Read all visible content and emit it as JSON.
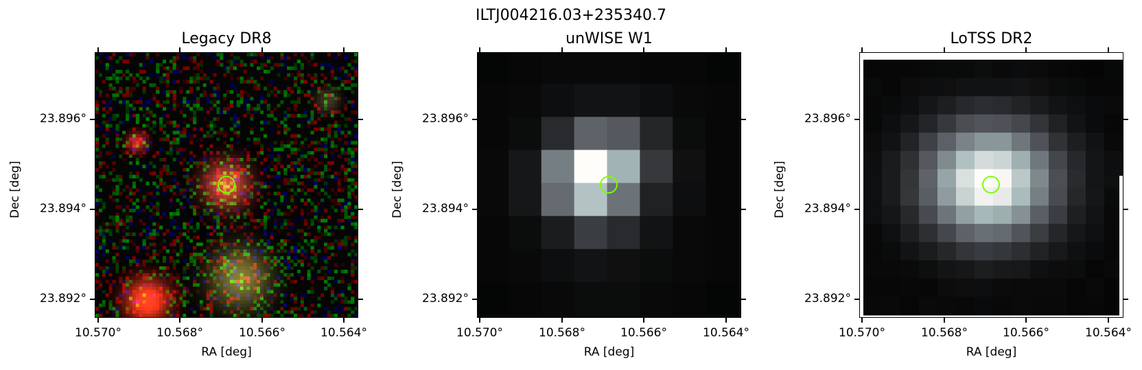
{
  "figure": {
    "title": "ILTJ004216.03+235340.7"
  },
  "panels": [
    {
      "title": "Legacy DR8",
      "xlabel": "RA [deg]",
      "ylabel": "Dec [deg]",
      "xticks": [
        "10.570°",
        "10.568°",
        "10.566°",
        "10.564°"
      ],
      "yticks": [
        "23.896°",
        "23.894°",
        "23.892°"
      ],
      "colormap": "rgb",
      "marker_color": "#7cfc00"
    },
    {
      "title": "unWISE W1",
      "xlabel": "RA [deg]",
      "ylabel": "Dec [deg]",
      "xticks": [
        "10.570°",
        "10.568°",
        "10.566°",
        "10.564°"
      ],
      "yticks": [
        "23.896°",
        "23.894°",
        "23.892°"
      ],
      "colormap": "bone",
      "marker_color": "#7cfc00"
    },
    {
      "title": "LoTSS DR2",
      "xlabel": "RA [deg]",
      "ylabel": "Dec [deg]",
      "xticks": [
        "10.570°",
        "10.568°",
        "10.566°",
        "10.564°"
      ],
      "yticks": [
        "23.896°",
        "23.894°",
        "23.892°"
      ],
      "colormap": "bone",
      "marker_color": "#7cfc00"
    }
  ]
}
